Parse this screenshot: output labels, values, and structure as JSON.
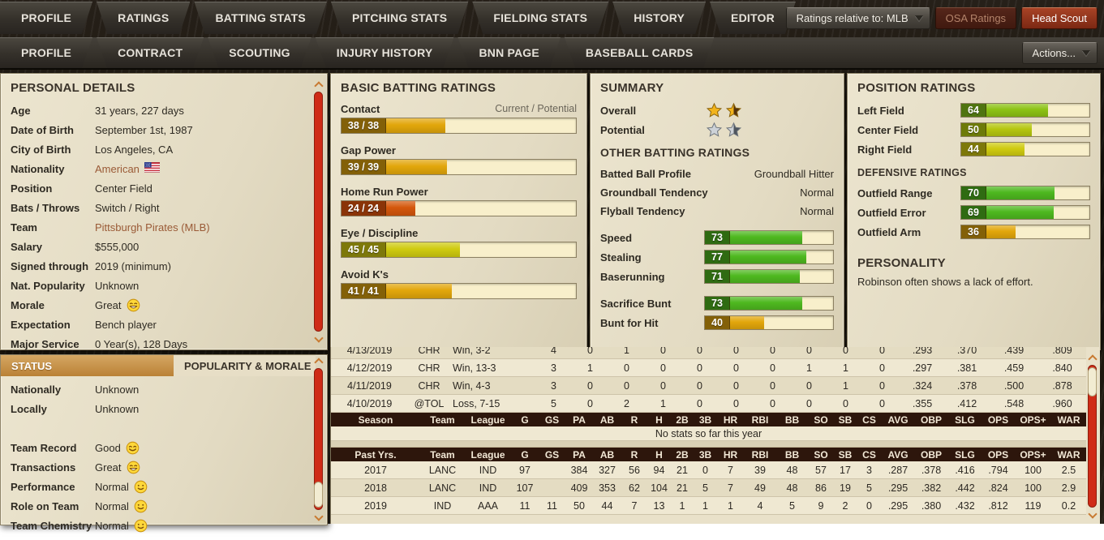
{
  "nav_primary": {
    "tabs": [
      "PROFILE",
      "RATINGS",
      "BATTING STATS",
      "PITCHING STATS",
      "FIELDING STATS",
      "HISTORY",
      "EDITOR"
    ],
    "ratings_scope_dropdown": "Ratings relative to: MLB",
    "osa_button": "OSA Ratings",
    "head_scout_button": "Head Scout"
  },
  "nav_secondary": {
    "tabs": [
      "PROFILE",
      "CONTRACT",
      "SCOUTING",
      "INJURY HISTORY",
      "BNN PAGE",
      "BASEBALL CARDS"
    ],
    "actions_button": "Actions..."
  },
  "personal": {
    "title": "PERSONAL DETAILS",
    "rows": [
      {
        "label": "Age",
        "value": "31 years, 227 days"
      },
      {
        "label": "Date of Birth",
        "value": "September 1st, 1987"
      },
      {
        "label": "City of Birth",
        "value": "Los Angeles, CA"
      },
      {
        "label": "Nationality",
        "value": "American",
        "link": true,
        "flag": "us-flag"
      },
      {
        "label": "Position",
        "value": "Center Field"
      },
      {
        "label": "Bats / Throws",
        "value": "Switch / Right"
      },
      {
        "label": "Team",
        "value": "Pittsburgh Pirates (MLB)",
        "link": true
      },
      {
        "label": "Salary",
        "value": "$555,000"
      },
      {
        "label": "Signed through",
        "value": "2019 (minimum)"
      },
      {
        "label": "Nat. Popularity",
        "value": "Unknown"
      },
      {
        "label": "Morale",
        "value": "Great",
        "emoji": "grin"
      },
      {
        "label": "Expectation",
        "value": "Bench player"
      },
      {
        "label": "Major Service",
        "value": "0 Year(s), 128 Days"
      }
    ]
  },
  "status": {
    "tab_active": "STATUS",
    "tab_inactive": "POPULARITY & MORALE",
    "rows": [
      {
        "label": "Nationally",
        "value": "Unknown"
      },
      {
        "label": "Locally",
        "value": "Unknown"
      },
      {
        "spacer": true
      },
      {
        "label": "Team Record",
        "value": "Good",
        "emoji": "smile"
      },
      {
        "label": "Transactions",
        "value": "Great",
        "emoji": "grin"
      },
      {
        "label": "Performance",
        "value": "Normal",
        "emoji": "slight"
      },
      {
        "label": "Role on Team",
        "value": "Normal",
        "emoji": "slight"
      },
      {
        "label": "Team Chemistry",
        "value": "Normal",
        "emoji": "slight"
      }
    ]
  },
  "batting": {
    "title": "BASIC BATTING RATINGS",
    "scale_note": "Current / Potential",
    "ratings": [
      {
        "label": "Contact",
        "display": "38 / 38",
        "value": 38
      },
      {
        "label": "Gap Power",
        "display": "39 / 39",
        "value": 39
      },
      {
        "label": "Home Run Power",
        "display": "24 / 24",
        "value": 24
      },
      {
        "label": "Eye / Discipline",
        "display": "45 / 45",
        "value": 45
      },
      {
        "label": "Avoid K's",
        "display": "41 / 41",
        "value": 41
      }
    ]
  },
  "summary": {
    "title": "SUMMARY",
    "overall_label": "Overall",
    "overall_stars": 1.5,
    "potential_label": "Potential",
    "potential_stars": 1.5,
    "other_title": "OTHER BATTING RATINGS",
    "profile_rows": [
      {
        "label": "Batted Ball Profile",
        "value": "Groundball Hitter"
      },
      {
        "label": "Groundball Tendency",
        "value": "Normal"
      },
      {
        "label": "Flyball Tendency",
        "value": "Normal"
      }
    ],
    "run_ratings": [
      {
        "label": "Speed",
        "value": 73
      },
      {
        "label": "Stealing",
        "value": 77
      },
      {
        "label": "Baserunning",
        "value": 71
      },
      {
        "spacer": true
      },
      {
        "label": "Sacrifice Bunt",
        "value": 73
      },
      {
        "label": "Bunt for Hit",
        "value": 40
      }
    ]
  },
  "position": {
    "title": "POSITION RATINGS",
    "ratings": [
      {
        "label": "Left Field",
        "value": 64
      },
      {
        "label": "Center Field",
        "value": 50
      },
      {
        "label": "Right Field",
        "value": 44
      }
    ],
    "defense_title": "DEFENSIVE RATINGS",
    "defense_ratings": [
      {
        "label": "Outfield Range",
        "value": 70
      },
      {
        "label": "Outfield Error",
        "value": 69
      },
      {
        "label": "Outfield Arm",
        "value": 36
      }
    ],
    "personality_title": "PERSONALITY",
    "personality_text": "Robinson often shows a lack of effort."
  },
  "game_log": {
    "rows": [
      {
        "date": "4/13/2019",
        "opp": "CHR",
        "result": "Win, 3-2",
        "nums": [
          "4",
          "0",
          "1",
          "0",
          "0",
          "0",
          "0",
          "0",
          "0",
          "0"
        ],
        "rates": [
          ".293",
          ".370",
          ".439",
          ".809"
        ]
      },
      {
        "date": "4/12/2019",
        "opp": "CHR",
        "result": "Win, 13-3",
        "nums": [
          "3",
          "1",
          "0",
          "0",
          "0",
          "0",
          "0",
          "1",
          "1",
          "0"
        ],
        "rates": [
          ".297",
          ".381",
          ".459",
          ".840"
        ]
      },
      {
        "date": "4/11/2019",
        "opp": "CHR",
        "result": "Win, 4-3",
        "nums": [
          "3",
          "0",
          "0",
          "0",
          "0",
          "0",
          "0",
          "0",
          "1",
          "0"
        ],
        "rates": [
          ".324",
          ".378",
          ".500",
          ".878"
        ]
      },
      {
        "date": "4/10/2019",
        "opp": "@TOL",
        "result": "Loss, 7-15",
        "nums": [
          "5",
          "0",
          "2",
          "1",
          "0",
          "0",
          "0",
          "0",
          "0",
          "0"
        ],
        "rates": [
          ".355",
          ".412",
          ".548",
          ".960"
        ]
      }
    ]
  },
  "stats": {
    "season_header": [
      "Season",
      "Team",
      "League",
      "G",
      "GS",
      "PA",
      "AB",
      "R",
      "H",
      "2B",
      "3B",
      "HR",
      "RBI",
      "BB",
      "SO",
      "SB",
      "CS",
      "AVG",
      "OBP",
      "SLG",
      "OPS",
      "OPS+",
      "WAR"
    ],
    "no_stats_text": "No stats so far this year",
    "past_header": [
      "Past Yrs.",
      "Team",
      "League",
      "G",
      "GS",
      "PA",
      "AB",
      "R",
      "H",
      "2B",
      "3B",
      "HR",
      "RBI",
      "BB",
      "SO",
      "SB",
      "CS",
      "AVG",
      "OBP",
      "SLG",
      "OPS",
      "OPS+",
      "WAR"
    ],
    "past_rows": [
      [
        "2017",
        "LANC",
        "IND",
        "97",
        "",
        "384",
        "327",
        "56",
        "94",
        "21",
        "0",
        "7",
        "39",
        "48",
        "57",
        "17",
        "3",
        ".287",
        ".378",
        ".416",
        ".794",
        "100",
        "2.5"
      ],
      [
        "2018",
        "LANC",
        "IND",
        "107",
        "",
        "409",
        "353",
        "62",
        "104",
        "21",
        "5",
        "7",
        "49",
        "48",
        "86",
        "19",
        "5",
        ".295",
        ".382",
        ".442",
        ".824",
        "100",
        "2.9"
      ],
      [
        "2019",
        "IND",
        "AAA",
        "11",
        "11",
        "50",
        "44",
        "7",
        "13",
        "1",
        "1",
        "1",
        "4",
        "5",
        "9",
        "2",
        "0",
        ".295",
        ".380",
        ".432",
        ".812",
        "119",
        "0.2"
      ]
    ]
  },
  "colors": {
    "accent_red": "#cf2b17",
    "status_tab_orange": "#ba8136",
    "table_header_brown": "#2d160c",
    "rating_scale": [
      {
        "max": 29,
        "fill": "#d4570c",
        "box": "#8a3408"
      },
      {
        "max": 43,
        "fill": "#e2a60b",
        "box": "#836008"
      },
      {
        "max": 47,
        "fill": "#cfcb10",
        "box": "#7d780a"
      },
      {
        "max": 57,
        "fill": "#b5c60f",
        "box": "#6d7a09"
      },
      {
        "max": 67,
        "fill": "#8cc214",
        "box": "#4f7410"
      },
      {
        "max": 80,
        "fill": "#4eb81f",
        "box": "#2f6b12"
      }
    ]
  }
}
